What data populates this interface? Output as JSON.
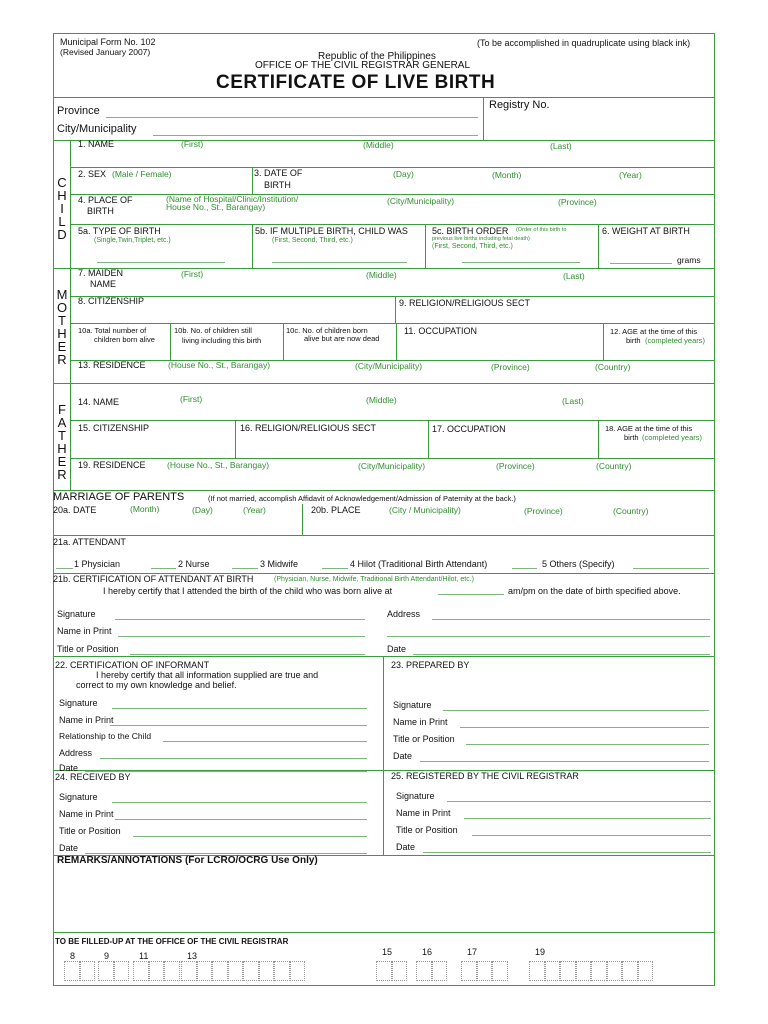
{
  "header": {
    "form_no": "Municipal Form No. 102",
    "revised": "(Revised January 2007)",
    "instruction": "(To be accomplished in quadruplicate using black ink)",
    "republic": "Republic of the Philippines",
    "office": "OFFICE OF THE CIVIL REGISTRAR GENERAL",
    "title": "CERTIFICATE OF LIVE BIRTH",
    "province": "Province",
    "city": "City/Municipality",
    "registry": "Registry No."
  },
  "child": {
    "side": "C H I L D",
    "name": "1. NAME",
    "first": "(First)",
    "middle": "(Middle)",
    "last": "(Last)",
    "sex": "2. SEX",
    "sex_opts": "(Male / Female)",
    "dob1": "3. DATE OF",
    "dob2": "BIRTH",
    "day": "(Day)",
    "month": "(Month)",
    "year": "(Year)",
    "pob1": "4. PLACE OF",
    "pob2": "BIRTH",
    "pob_hosp1": "(Name of Hospital/Clinic/Institution/",
    "pob_hosp2": "House No., St., Barangay)",
    "pob_city": "(City/Municipality)",
    "pob_prov": "(Province)",
    "type": "5a. TYPE OF BIRTH",
    "type_hint": "(Single,Twin,Triplet, etc.)",
    "multiple": "5b. IF MULTIPLE BIRTH, CHILD WAS",
    "multiple_hint": "(First, Second, Third, etc.)",
    "order": "5c. BIRTH ORDER",
    "order_hint1": "(Order of this birth to",
    "order_hint2": "previous live births including fetal death)",
    "order_hint3": "(First, Second, Third, etc.)",
    "weight": "6. WEIGHT AT BIRTH",
    "grams": "grams"
  },
  "mother": {
    "side": "M O T H E R",
    "maiden1": "7. MAIDEN",
    "maiden2": "NAME",
    "first": "(First)",
    "middle": "(Middle)",
    "last": "(Last)",
    "citizenship": "8. CITIZENSHIP",
    "religion": "9. RELIGION/RELIGIOUS SECT",
    "c10a1": "10a. Total number of",
    "c10a2": "children born alive",
    "c10b1": "10b. No. of children still",
    "c10b2": "living including this birth",
    "c10c1": "10c. No. of children  born",
    "c10c2": "alive but are now dead",
    "occupation": "11. OCCUPATION",
    "age1": "12. AGE at the time of this",
    "age2": "birth",
    "age3": "(completed years)",
    "residence": "13. RESIDENCE",
    "house": "(House No., St., Barangay)",
    "city": "(City/Municipality)",
    "province": "(Province)",
    "country": "(Country)"
  },
  "father": {
    "side": "F A T H E R",
    "name": "14. NAME",
    "first": "(First)",
    "middle": "(Middle)",
    "last": "(Last)",
    "citizenship": "15. CITIZENSHIP",
    "religion": "16. RELIGION/RELIGIOUS SECT",
    "occupation": "17. OCCUPATION",
    "age1": "18.  AGE at the time of this",
    "age2": "birth",
    "age3": "(completed years)",
    "residence": "19. RESIDENCE",
    "house": "(House No., St., Barangay)",
    "city": "(City/Municipality)",
    "province": "(Province)",
    "country": "(Country)"
  },
  "marriage": {
    "title": "MARRIAGE OF PARENTS",
    "note": "(If not married, accomplish Affidavit of Acknowledgement/Admission of Paternity at the back.)",
    "date": "20a. DATE",
    "month": "(Month)",
    "day": "(Day)",
    "year": "(Year)",
    "place": "20b. PLACE",
    "city": "(City / Municipality)",
    "province": "(Province)",
    "country": "(Country)"
  },
  "attendant": {
    "label": "21a. ATTENDANT",
    "options": [
      "1  Physician",
      "2  Nurse",
      "3  Midwife",
      "4  Hilot (Traditional Birth Attendant)",
      "5  Others (Specify)"
    ]
  },
  "cert_attendant": {
    "label": "21b. CERTIFICATION OF ATTENDANT AT BIRTH",
    "hint": "(Physician, Nurse, Midwife, Traditional Birth Attendant/Hilot, etc.)",
    "text1": "I  hereby certify that I attended the birth of the child who was born alive at",
    "text2": "am/pm   on the date of birth specified above.",
    "signature": "Signature",
    "name": "Name in Print",
    "title": "Title or Position",
    "address": "Address",
    "date": "Date"
  },
  "informant": {
    "label": "22. CERTIFICATION OF INFORMANT",
    "text1": "I hereby certify that all information supplied are true and",
    "text2": "correct to my own knowledge and belief.",
    "signature": "Signature",
    "name": "Name in Print",
    "relationship": "Relationship to the Child",
    "address": "Address",
    "date": "Date"
  },
  "prepared": {
    "label": "23. PREPARED BY",
    "signature": "Signature",
    "name": "Name in Print",
    "title": "Title or Position",
    "date": "Date"
  },
  "received": {
    "label": "24. RECEIVED BY",
    "signature": "Signature",
    "name": "Name in Print",
    "title": "Title or Position",
    "date": "Date"
  },
  "registered": {
    "label": "25. REGISTERED BY THE CIVIL REGISTRAR",
    "signature": "Signature",
    "name": "Name in Print",
    "title": "Title or Position",
    "date": "Date"
  },
  "remarks": {
    "label": "REMARKS/ANNOTATIONS (For LCRO/OCRG Use Only)"
  },
  "office": {
    "label": "TO BE FILLED-UP AT THE OFFICE OF THE CIVIL REGISTRAR",
    "codes": [
      "8",
      "9",
      "11",
      "13",
      "15",
      "16",
      "17",
      "19"
    ]
  },
  "colors": {
    "line": "#3c9b3c",
    "hint_text": "#2f8f2f"
  }
}
